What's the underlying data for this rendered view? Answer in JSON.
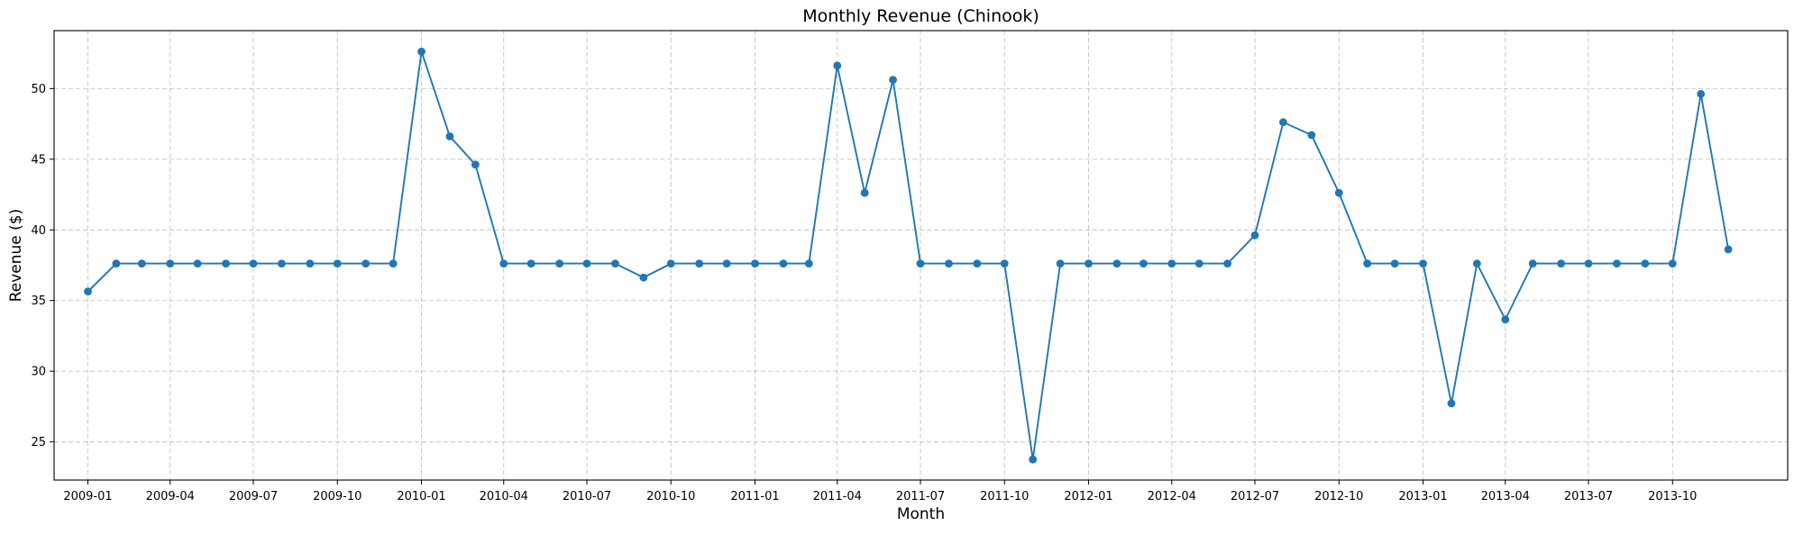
{
  "chart_data": {
    "type": "line",
    "title": "Monthly Revenue (Chinook)",
    "xlabel": "Month",
    "ylabel": "Revenue ($)",
    "x": [
      "2009-01",
      "2009-02",
      "2009-03",
      "2009-04",
      "2009-05",
      "2009-06",
      "2009-07",
      "2009-08",
      "2009-09",
      "2009-10",
      "2009-11",
      "2009-12",
      "2010-01",
      "2010-02",
      "2010-03",
      "2010-04",
      "2010-05",
      "2010-06",
      "2010-07",
      "2010-08",
      "2010-09",
      "2010-10",
      "2010-11",
      "2010-12",
      "2011-01",
      "2011-02",
      "2011-03",
      "2011-04",
      "2011-05",
      "2011-06",
      "2011-07",
      "2011-08",
      "2011-09",
      "2011-10",
      "2011-11",
      "2011-12",
      "2012-01",
      "2012-02",
      "2012-03",
      "2012-04",
      "2012-05",
      "2012-06",
      "2012-07",
      "2012-08",
      "2012-09",
      "2012-10",
      "2012-11",
      "2012-12",
      "2013-01",
      "2013-02",
      "2013-03",
      "2013-04",
      "2013-05",
      "2013-06",
      "2013-07",
      "2013-08",
      "2013-09",
      "2013-10",
      "2013-11",
      "2013-12"
    ],
    "series": [
      {
        "values": [
          35.64,
          37.62,
          37.62,
          37.62,
          37.62,
          37.62,
          37.62,
          37.62,
          37.62,
          37.62,
          37.62,
          37.62,
          52.62,
          46.62,
          44.62,
          37.62,
          37.62,
          37.62,
          37.62,
          37.62,
          36.63,
          37.62,
          37.62,
          37.62,
          37.62,
          37.62,
          37.62,
          51.62,
          42.62,
          50.62,
          37.62,
          37.62,
          37.62,
          37.62,
          23.76,
          37.62,
          37.62,
          37.62,
          37.62,
          37.62,
          37.62,
          37.62,
          39.62,
          47.62,
          46.71,
          42.62,
          37.62,
          37.62,
          37.62,
          27.72,
          37.62,
          33.66,
          37.62,
          37.62,
          37.62,
          37.62,
          37.62,
          37.62,
          49.62,
          38.62
        ]
      }
    ],
    "xticks": [
      "2009-01",
      "2009-04",
      "2009-07",
      "2009-10",
      "2010-01",
      "2010-04",
      "2010-07",
      "2010-10",
      "2011-01",
      "2011-04",
      "2011-07",
      "2011-10",
      "2012-01",
      "2012-04",
      "2012-07",
      "2012-10",
      "2013-01",
      "2013-04",
      "2013-07",
      "2013-10"
    ],
    "yticks": [
      25,
      30,
      35,
      40,
      45,
      50
    ],
    "xlim": [
      "2008-11-25",
      "2014-02-04"
    ],
    "ylim": [
      22.3,
      54.1
    ],
    "grid": true,
    "legend": "none",
    "line_color": "#1f77b4",
    "marker": "circle"
  }
}
